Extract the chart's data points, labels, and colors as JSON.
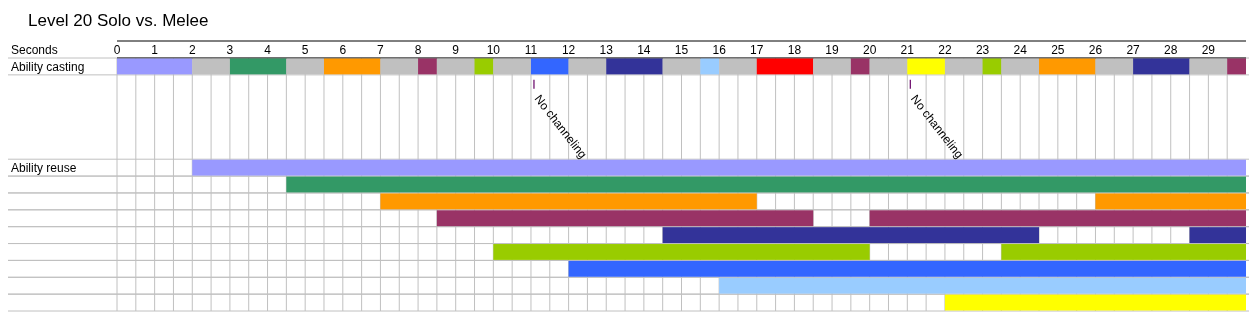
{
  "chart_data": {
    "type": "bar",
    "orientation": "horizontal",
    "title": "Level 20 Solo vs. Melee",
    "xlabel": "Seconds",
    "categories": [
      "Ability casting",
      null,
      null,
      null,
      null,
      null,
      "Ability reuse",
      null,
      null,
      null,
      null,
      null,
      null,
      null,
      null
    ],
    "xlim": [
      0,
      30
    ],
    "xticks": [
      0,
      {
        "value": 0.5,
        "label": null
      },
      1,
      {
        "value": 1.5,
        "label": null
      },
      2,
      {
        "value": 2.5,
        "label": null
      },
      3,
      {
        "value": 3.5,
        "label": null
      },
      4,
      {
        "value": 4.5,
        "label": null
      },
      5,
      {
        "value": 5.5,
        "label": null
      },
      6,
      {
        "value": 6.5,
        "label": null
      },
      7,
      {
        "value": 7.5,
        "label": null
      },
      8,
      {
        "value": 8.5,
        "label": null
      },
      9,
      {
        "value": 9.5,
        "label": null
      },
      10,
      {
        "value": 10.5,
        "label": null
      },
      11,
      {
        "value": 11.5,
        "label": null
      },
      12,
      {
        "value": 12.5,
        "label": null
      },
      13,
      {
        "value": 13.5,
        "label": null
      },
      14,
      {
        "value": 14.5,
        "label": null
      },
      15,
      {
        "value": 15.5,
        "label": null
      },
      16,
      {
        "value": 16.5,
        "label": null
      },
      17,
      {
        "value": 17.5,
        "label": null
      },
      18,
      {
        "value": 18.5,
        "label": null
      },
      19,
      {
        "value": 19.5,
        "label": null
      },
      20,
      {
        "value": 20.5,
        "label": null
      },
      21,
      {
        "value": 21.5,
        "label": null
      },
      22,
      {
        "value": 22.5,
        "label": null
      },
      23,
      {
        "value": 23.5,
        "label": null
      },
      24,
      {
        "value": 24.5,
        "label": null
      },
      25,
      {
        "value": 25.5,
        "label": null
      },
      26,
      {
        "value": 26.5,
        "label": null
      },
      27,
      {
        "value": 27.5,
        "label": null
      },
      28,
      {
        "value": 28.5,
        "label": null
      },
      29,
      {
        "value": 29.5,
        "label": null
      }
    ],
    "grid": true,
    "annotations": [
      {
        "text": "No channeling",
        "x": 11,
        "y": "Ability casting"
      },
      {
        "text": "No channeling",
        "x": 21,
        "y": "Ability casting"
      }
    ],
    "series": [
      {
        "color": "#9999ff",
        "base": [
          0,
          null,
          null,
          null,
          null,
          null,
          2,
          null,
          null,
          null,
          null,
          null,
          null,
          null,
          null
        ],
        "values": [
          2,
          null,
          null,
          null,
          null,
          null,
          28,
          null,
          null,
          null,
          null,
          null,
          null,
          null,
          null
        ]
      },
      {
        "color": "#c0c0c0",
        "base": [
          2,
          null,
          null,
          null,
          null,
          null,
          null,
          null,
          null,
          null,
          null,
          null,
          null,
          null,
          null
        ],
        "values": [
          1,
          null,
          null,
          null,
          null,
          null,
          null,
          null,
          null,
          null,
          null,
          null,
          null,
          null,
          null
        ]
      },
      {
        "color": "#339966",
        "base": [
          3,
          null,
          null,
          null,
          null,
          null,
          null,
          4.5,
          null,
          null,
          null,
          null,
          null,
          null,
          null
        ],
        "values": [
          1.5,
          null,
          null,
          null,
          null,
          null,
          null,
          25.5,
          null,
          null,
          null,
          null,
          null,
          null,
          null
        ]
      },
      {
        "color": "#c0c0c0",
        "base": [
          4.5,
          null,
          null,
          null,
          null,
          null,
          null,
          null,
          null,
          null,
          null,
          null,
          null,
          null,
          null
        ],
        "values": [
          1,
          null,
          null,
          null,
          null,
          null,
          null,
          null,
          null,
          null,
          null,
          null,
          null,
          null,
          null
        ]
      },
      {
        "color": "#ff9900",
        "base": [
          5.5,
          null,
          null,
          null,
          null,
          null,
          null,
          null,
          7,
          null,
          null,
          null,
          null,
          null,
          null
        ],
        "values": [
          1.5,
          null,
          null,
          null,
          null,
          null,
          null,
          null,
          10,
          null,
          null,
          null,
          null,
          null,
          null
        ]
      },
      {
        "color": "#c0c0c0",
        "base": [
          7,
          null,
          null,
          null,
          null,
          null,
          null,
          null,
          null,
          null,
          null,
          null,
          null,
          null,
          null
        ],
        "values": [
          1,
          null,
          null,
          null,
          null,
          null,
          null,
          null,
          null,
          null,
          null,
          null,
          null,
          null,
          null
        ]
      },
      {
        "color": "#993366",
        "base": [
          8,
          null,
          null,
          null,
          null,
          null,
          null,
          null,
          null,
          8.5,
          null,
          null,
          null,
          null,
          null
        ],
        "values": [
          0.5,
          null,
          null,
          null,
          null,
          null,
          null,
          null,
          null,
          10,
          null,
          null,
          null,
          null,
          null
        ]
      },
      {
        "color": "#c0c0c0",
        "base": [
          8.5,
          null,
          null,
          null,
          null,
          null,
          null,
          null,
          null,
          null,
          null,
          null,
          null,
          null,
          null
        ],
        "values": [
          1,
          null,
          null,
          null,
          null,
          null,
          null,
          null,
          null,
          null,
          null,
          null,
          null,
          null,
          null
        ]
      },
      {
        "color": "#99cc00",
        "base": [
          9.5,
          null,
          null,
          null,
          null,
          null,
          null,
          null,
          null,
          null,
          null,
          10,
          null,
          null,
          null
        ],
        "values": [
          0.5,
          null,
          null,
          null,
          null,
          null,
          null,
          null,
          null,
          null,
          null,
          10,
          null,
          null,
          null
        ]
      },
      {
        "color": "#c0c0c0",
        "base": [
          10,
          null,
          null,
          null,
          null,
          null,
          null,
          null,
          null,
          null,
          null,
          null,
          null,
          null,
          null
        ],
        "values": [
          1,
          null,
          null,
          null,
          null,
          null,
          null,
          null,
          null,
          null,
          null,
          null,
          null,
          null,
          null
        ]
      },
      {
        "color": "#3366ff",
        "base": [
          11,
          null,
          null,
          null,
          null,
          null,
          null,
          null,
          null,
          null,
          null,
          null,
          12,
          null,
          null
        ],
        "values": [
          1,
          null,
          null,
          null,
          null,
          null,
          null,
          null,
          null,
          null,
          null,
          null,
          18,
          null,
          null
        ]
      },
      {
        "color": "#c0c0c0",
        "base": [
          12,
          null,
          null,
          null,
          null,
          null,
          null,
          null,
          null,
          null,
          null,
          null,
          null,
          null,
          null
        ],
        "values": [
          1,
          null,
          null,
          null,
          null,
          null,
          null,
          null,
          null,
          null,
          null,
          null,
          null,
          null,
          null
        ]
      },
      {
        "color": "#333399",
        "base": [
          13,
          null,
          null,
          null,
          null,
          null,
          null,
          null,
          null,
          null,
          14.5,
          null,
          null,
          null,
          null
        ],
        "values": [
          1.5,
          null,
          null,
          null,
          null,
          null,
          null,
          null,
          null,
          null,
          10,
          null,
          null,
          null,
          null
        ]
      },
      {
        "color": "#c0c0c0",
        "base": [
          14.5,
          null,
          null,
          null,
          null,
          null,
          null,
          null,
          null,
          null,
          null,
          null,
          null,
          null,
          null
        ],
        "values": [
          1,
          null,
          null,
          null,
          null,
          null,
          null,
          null,
          null,
          null,
          null,
          null,
          null,
          null,
          null
        ]
      },
      {
        "color": "#99ccff",
        "base": [
          15.5,
          null,
          null,
          null,
          null,
          null,
          null,
          null,
          null,
          null,
          null,
          null,
          null,
          16,
          null
        ],
        "values": [
          0.5,
          null,
          null,
          null,
          null,
          null,
          null,
          null,
          null,
          null,
          null,
          null,
          null,
          14,
          null
        ]
      },
      {
        "color": "#c0c0c0",
        "base": [
          16,
          null,
          null,
          null,
          null,
          null,
          null,
          null,
          null,
          null,
          null,
          null,
          null,
          null,
          null
        ],
        "values": [
          1,
          null,
          null,
          null,
          null,
          null,
          null,
          null,
          null,
          null,
          null,
          null,
          null,
          null,
          null
        ]
      },
      {
        "color": "#ff0000",
        "base": [
          17,
          null,
          null,
          null,
          null,
          null,
          null,
          null,
          null,
          null,
          null,
          null,
          null,
          null,
          null
        ],
        "values": [
          1.5,
          null,
          null,
          null,
          null,
          null,
          null,
          null,
          null,
          null,
          null,
          null,
          null,
          null,
          null
        ]
      },
      {
        "color": "#c0c0c0",
        "base": [
          18.5,
          null,
          null,
          null,
          null,
          null,
          null,
          null,
          null,
          null,
          null,
          null,
          null,
          null,
          null
        ],
        "values": [
          1,
          null,
          null,
          null,
          null,
          null,
          null,
          null,
          null,
          null,
          null,
          null,
          null,
          null,
          null
        ]
      },
      {
        "color": "#993366",
        "base": [
          19.5,
          null,
          null,
          null,
          null,
          null,
          null,
          null,
          null,
          20,
          null,
          null,
          null,
          null,
          null
        ],
        "values": [
          0.5,
          null,
          null,
          null,
          null,
          null,
          null,
          null,
          null,
          10,
          null,
          null,
          null,
          null,
          null
        ]
      },
      {
        "color": "#c0c0c0",
        "base": [
          20,
          null,
          null,
          null,
          null,
          null,
          null,
          null,
          null,
          null,
          null,
          null,
          null,
          null,
          null
        ],
        "values": [
          1,
          null,
          null,
          null,
          null,
          null,
          null,
          null,
          null,
          null,
          null,
          null,
          null,
          null,
          null
        ]
      },
      {
        "color": "#ffff00",
        "base": [
          21,
          null,
          null,
          null,
          null,
          null,
          null,
          null,
          null,
          null,
          null,
          null,
          null,
          null,
          22
        ],
        "values": [
          1,
          null,
          null,
          null,
          null,
          null,
          null,
          null,
          null,
          null,
          null,
          null,
          null,
          null,
          8
        ]
      },
      {
        "color": "#c0c0c0",
        "base": [
          22,
          null,
          null,
          null,
          null,
          null,
          null,
          null,
          null,
          null,
          null,
          null,
          null,
          null,
          null
        ],
        "values": [
          1,
          null,
          null,
          null,
          null,
          null,
          null,
          null,
          null,
          null,
          null,
          null,
          null,
          null,
          null
        ]
      },
      {
        "color": "#99cc00",
        "base": [
          23,
          null,
          null,
          null,
          null,
          null,
          null,
          null,
          null,
          null,
          null,
          23.5,
          null,
          null,
          null
        ],
        "values": [
          0.5,
          null,
          null,
          null,
          null,
          null,
          null,
          null,
          null,
          null,
          null,
          6.5,
          null,
          null,
          null
        ]
      },
      {
        "color": "#c0c0c0",
        "base": [
          23.5,
          null,
          null,
          null,
          null,
          null,
          null,
          null,
          null,
          null,
          null,
          null,
          null,
          null,
          null
        ],
        "values": [
          1,
          null,
          null,
          null,
          null,
          null,
          null,
          null,
          null,
          null,
          null,
          null,
          null,
          null,
          null
        ]
      },
      {
        "color": "#ff9900",
        "base": [
          24.5,
          null,
          null,
          null,
          null,
          null,
          null,
          null,
          26,
          null,
          null,
          null,
          null,
          null,
          null
        ],
        "values": [
          1.5,
          null,
          null,
          null,
          null,
          null,
          null,
          null,
          4,
          null,
          null,
          null,
          null,
          null,
          null
        ]
      },
      {
        "color": "#c0c0c0",
        "base": [
          26,
          null,
          null,
          null,
          null,
          null,
          null,
          null,
          null,
          null,
          null,
          null,
          null,
          null,
          null
        ],
        "values": [
          1,
          null,
          null,
          null,
          null,
          null,
          null,
          null,
          null,
          null,
          null,
          null,
          null,
          null,
          null
        ]
      },
      {
        "color": "#333399",
        "base": [
          27,
          null,
          null,
          null,
          null,
          null,
          null,
          null,
          null,
          null,
          28.5,
          null,
          null,
          null,
          null
        ],
        "values": [
          1.5,
          null,
          null,
          null,
          null,
          null,
          null,
          null,
          null,
          null,
          1.5,
          null,
          null,
          null,
          null
        ]
      },
      {
        "color": "#c0c0c0",
        "base": [
          28.5,
          null,
          null,
          null,
          null,
          null,
          null,
          null,
          null,
          null,
          null,
          null,
          null,
          null,
          null
        ],
        "values": [
          1,
          null,
          null,
          null,
          null,
          null,
          null,
          null,
          null,
          null,
          null,
          null,
          null,
          null,
          null
        ]
      },
      {
        "color": "#993366",
        "base": [
          29.5,
          null,
          null,
          null,
          null,
          null,
          null,
          null,
          null,
          null,
          null,
          null,
          null,
          null,
          null
        ],
        "values": [
          0.5,
          null,
          null,
          null,
          null,
          null,
          null,
          null,
          null,
          null,
          null,
          null,
          null,
          null,
          null
        ]
      }
    ]
  }
}
